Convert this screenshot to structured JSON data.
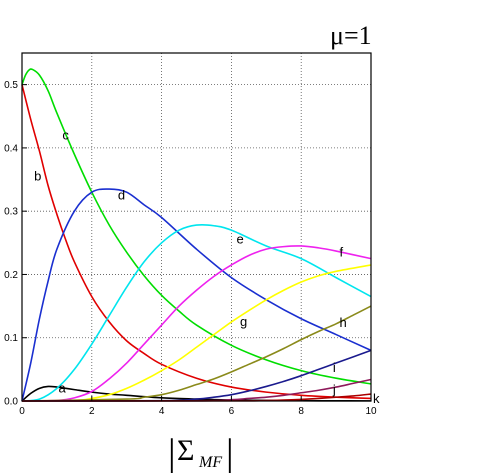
{
  "chart_data": {
    "type": "line",
    "title": "",
    "annotation": "μ=1",
    "xlabel": {
      "bar": "|",
      "symbol": "Σ",
      "subscript": "MF"
    },
    "ylabel": "",
    "xlim": [
      0,
      10
    ],
    "ylim": [
      0,
      0.55
    ],
    "grid": true,
    "grid_style": "dotted",
    "x_ticks": [
      0,
      2,
      4,
      6,
      8,
      10
    ],
    "x_tick_labels": [
      "0",
      "2",
      "4",
      "6",
      "8",
      "10"
    ],
    "y_ticks": [
      0,
      0.1,
      0.2,
      0.3,
      0.4,
      0.5
    ],
    "y_tick_labels": [
      "0.0",
      "0.1",
      "0.2",
      "0.3",
      "0.4",
      "0.5"
    ],
    "series": [
      {
        "label": "a",
        "color": "#000000",
        "label_x": 1.15,
        "label_y": 0.02,
        "x": [
          0,
          0.25,
          0.5,
          0.75,
          1.0,
          1.25,
          1.5,
          2,
          2.5,
          3,
          4,
          5,
          6,
          7,
          8,
          9,
          10
        ],
        "y": [
          0.0,
          0.012,
          0.02,
          0.023,
          0.022,
          0.02,
          0.018,
          0.014,
          0.011,
          0.009,
          0.005,
          0.003,
          0.0015,
          0.001,
          0.0005,
          0.0003,
          0.0002
        ]
      },
      {
        "label": "b",
        "color": "#e00000",
        "label_x": 0.45,
        "label_y": 0.355,
        "x": [
          0,
          0.25,
          0.5,
          0.75,
          1.0,
          1.25,
          1.5,
          2,
          2.5,
          3,
          3.5,
          4,
          5,
          6,
          7,
          8,
          9,
          10
        ],
        "y": [
          0.5,
          0.445,
          0.395,
          0.34,
          0.295,
          0.255,
          0.22,
          0.165,
          0.125,
          0.095,
          0.075,
          0.058,
          0.036,
          0.022,
          0.014,
          0.009,
          0.006,
          0.004
        ]
      },
      {
        "label": "c",
        "color": "#00dd00",
        "label_x": 1.25,
        "label_y": 0.42,
        "x": [
          0,
          0.1,
          0.2,
          0.3,
          0.5,
          0.75,
          1.0,
          1.5,
          2,
          2.5,
          3,
          3.5,
          4,
          4.5,
          5,
          6,
          7,
          8,
          9,
          10
        ],
        "y": [
          0.5,
          0.515,
          0.523,
          0.524,
          0.515,
          0.49,
          0.455,
          0.39,
          0.33,
          0.278,
          0.235,
          0.198,
          0.167,
          0.142,
          0.12,
          0.088,
          0.065,
          0.048,
          0.036,
          0.027
        ]
      },
      {
        "label": "d",
        "color": "#1a2fd0",
        "label_x": 2.85,
        "label_y": 0.325,
        "x": [
          0,
          0.25,
          0.5,
          0.75,
          1.0,
          1.5,
          2,
          2.5,
          3,
          3.5,
          4,
          5,
          6,
          7,
          8,
          9,
          10
        ],
        "y": [
          0.0,
          0.06,
          0.13,
          0.19,
          0.24,
          0.3,
          0.33,
          0.335,
          0.33,
          0.31,
          0.29,
          0.24,
          0.195,
          0.16,
          0.13,
          0.105,
          0.08
        ]
      },
      {
        "label": "e",
        "color": "#00e5ee",
        "label_x": 6.25,
        "label_y": 0.255,
        "x": [
          0,
          0.5,
          1,
          1.5,
          2,
          2.5,
          3,
          3.5,
          4,
          4.5,
          5,
          5.5,
          6,
          7,
          8,
          9,
          10
        ],
        "y": [
          0.0,
          0.003,
          0.02,
          0.05,
          0.09,
          0.135,
          0.18,
          0.22,
          0.25,
          0.27,
          0.278,
          0.277,
          0.27,
          0.245,
          0.225,
          0.195,
          0.165
        ]
      },
      {
        "label": "f",
        "color": "#ee22ee",
        "label_x": 9.15,
        "label_y": 0.235,
        "x": [
          0,
          1,
          1.5,
          2,
          2.5,
          3,
          3.5,
          4,
          4.5,
          5,
          5.5,
          6,
          6.5,
          7,
          7.5,
          8,
          8.5,
          9,
          10
        ],
        "y": [
          0.0,
          0.001,
          0.005,
          0.015,
          0.035,
          0.06,
          0.09,
          0.12,
          0.15,
          0.175,
          0.197,
          0.215,
          0.23,
          0.24,
          0.244,
          0.245,
          0.242,
          0.237,
          0.225
        ]
      },
      {
        "label": "g",
        "color": "#ffff00",
        "label_x": 6.35,
        "label_y": 0.125,
        "x": [
          0,
          1.5,
          2,
          2.5,
          3,
          3.5,
          4,
          4.5,
          5,
          5.5,
          6,
          6.5,
          7,
          7.5,
          8,
          8.5,
          9,
          10
        ],
        "y": [
          0.0,
          0.001,
          0.004,
          0.01,
          0.02,
          0.033,
          0.048,
          0.065,
          0.085,
          0.105,
          0.125,
          0.143,
          0.16,
          0.175,
          0.188,
          0.198,
          0.205,
          0.215
        ]
      },
      {
        "label": "h",
        "color": "#8a8a1a",
        "label_x": 9.2,
        "label_y": 0.123,
        "x": [
          0,
          3,
          3.5,
          4,
          4.5,
          5,
          5.5,
          6,
          6.5,
          7,
          7.5,
          8,
          8.5,
          9,
          9.5,
          10
        ],
        "y": [
          0.0,
          0.003,
          0.006,
          0.01,
          0.017,
          0.026,
          0.035,
          0.046,
          0.058,
          0.07,
          0.083,
          0.097,
          0.11,
          0.122,
          0.136,
          0.15
        ]
      },
      {
        "label": "i",
        "color": "#1a1a8e",
        "label_x": 8.95,
        "label_y": 0.052,
        "x": [
          0,
          4,
          5,
          5.5,
          6,
          6.5,
          7,
          7.5,
          8,
          8.5,
          9,
          9.5,
          10
        ],
        "y": [
          0.0,
          0.0005,
          0.003,
          0.006,
          0.01,
          0.016,
          0.023,
          0.031,
          0.04,
          0.05,
          0.06,
          0.07,
          0.08
        ]
      },
      {
        "label": "j",
        "color": "#8e1a5a",
        "label_x": 8.95,
        "label_y": 0.017,
        "x": [
          0,
          5,
          6,
          6.5,
          7,
          7.5,
          8,
          8.5,
          9,
          9.5,
          10
        ],
        "y": [
          0.0,
          0.0003,
          0.002,
          0.004,
          0.006,
          0.009,
          0.013,
          0.017,
          0.022,
          0.028,
          0.034
        ]
      },
      {
        "label": "k",
        "color": "#aa0000",
        "label_x": 10.15,
        "label_y": 0.003,
        "x": [
          0,
          6,
          7,
          7.5,
          8,
          8.5,
          9,
          9.5,
          10
        ],
        "y": [
          0.0,
          0.0002,
          0.0008,
          0.0015,
          0.0025,
          0.004,
          0.006,
          0.008,
          0.011
        ]
      }
    ]
  }
}
